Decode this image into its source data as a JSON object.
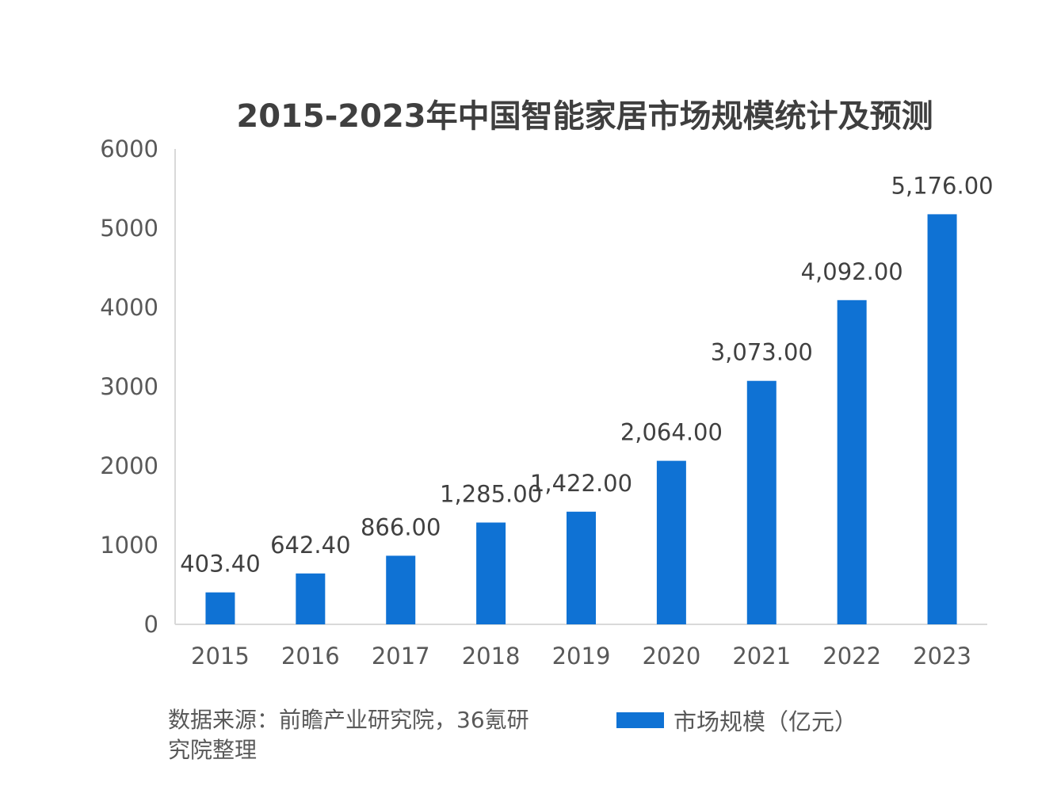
{
  "chart_data": {
    "type": "bar",
    "title": "2015-2023年中国智能家居市场规模统计及预测",
    "categories": [
      "2015",
      "2016",
      "2017",
      "2018",
      "2019",
      "2020",
      "2021",
      "2022",
      "2023"
    ],
    "series": [
      {
        "name": "市场规模（亿元）",
        "values": [
          403.4,
          642.4,
          866.0,
          1285.0,
          1422.0,
          2064.0,
          3073.0,
          4092.0,
          5176.0
        ],
        "labels": [
          "403.40",
          "642.40",
          "866.00",
          "1,285.00",
          "1,422.00",
          "2,064.00",
          "3,073.00",
          "4,092.00",
          "5,176.00"
        ]
      }
    ],
    "yticks": [
      "0",
      "1000",
      "2000",
      "3000",
      "4000",
      "5000",
      "6000"
    ],
    "ylim": [
      0,
      6000
    ],
    "grid": false,
    "legend": "bottom",
    "color": "#0f72d4"
  },
  "source_note": "数据来源：前瞻产业研究院，36氪研究院整理",
  "legend_label": "市场规模（亿元）"
}
